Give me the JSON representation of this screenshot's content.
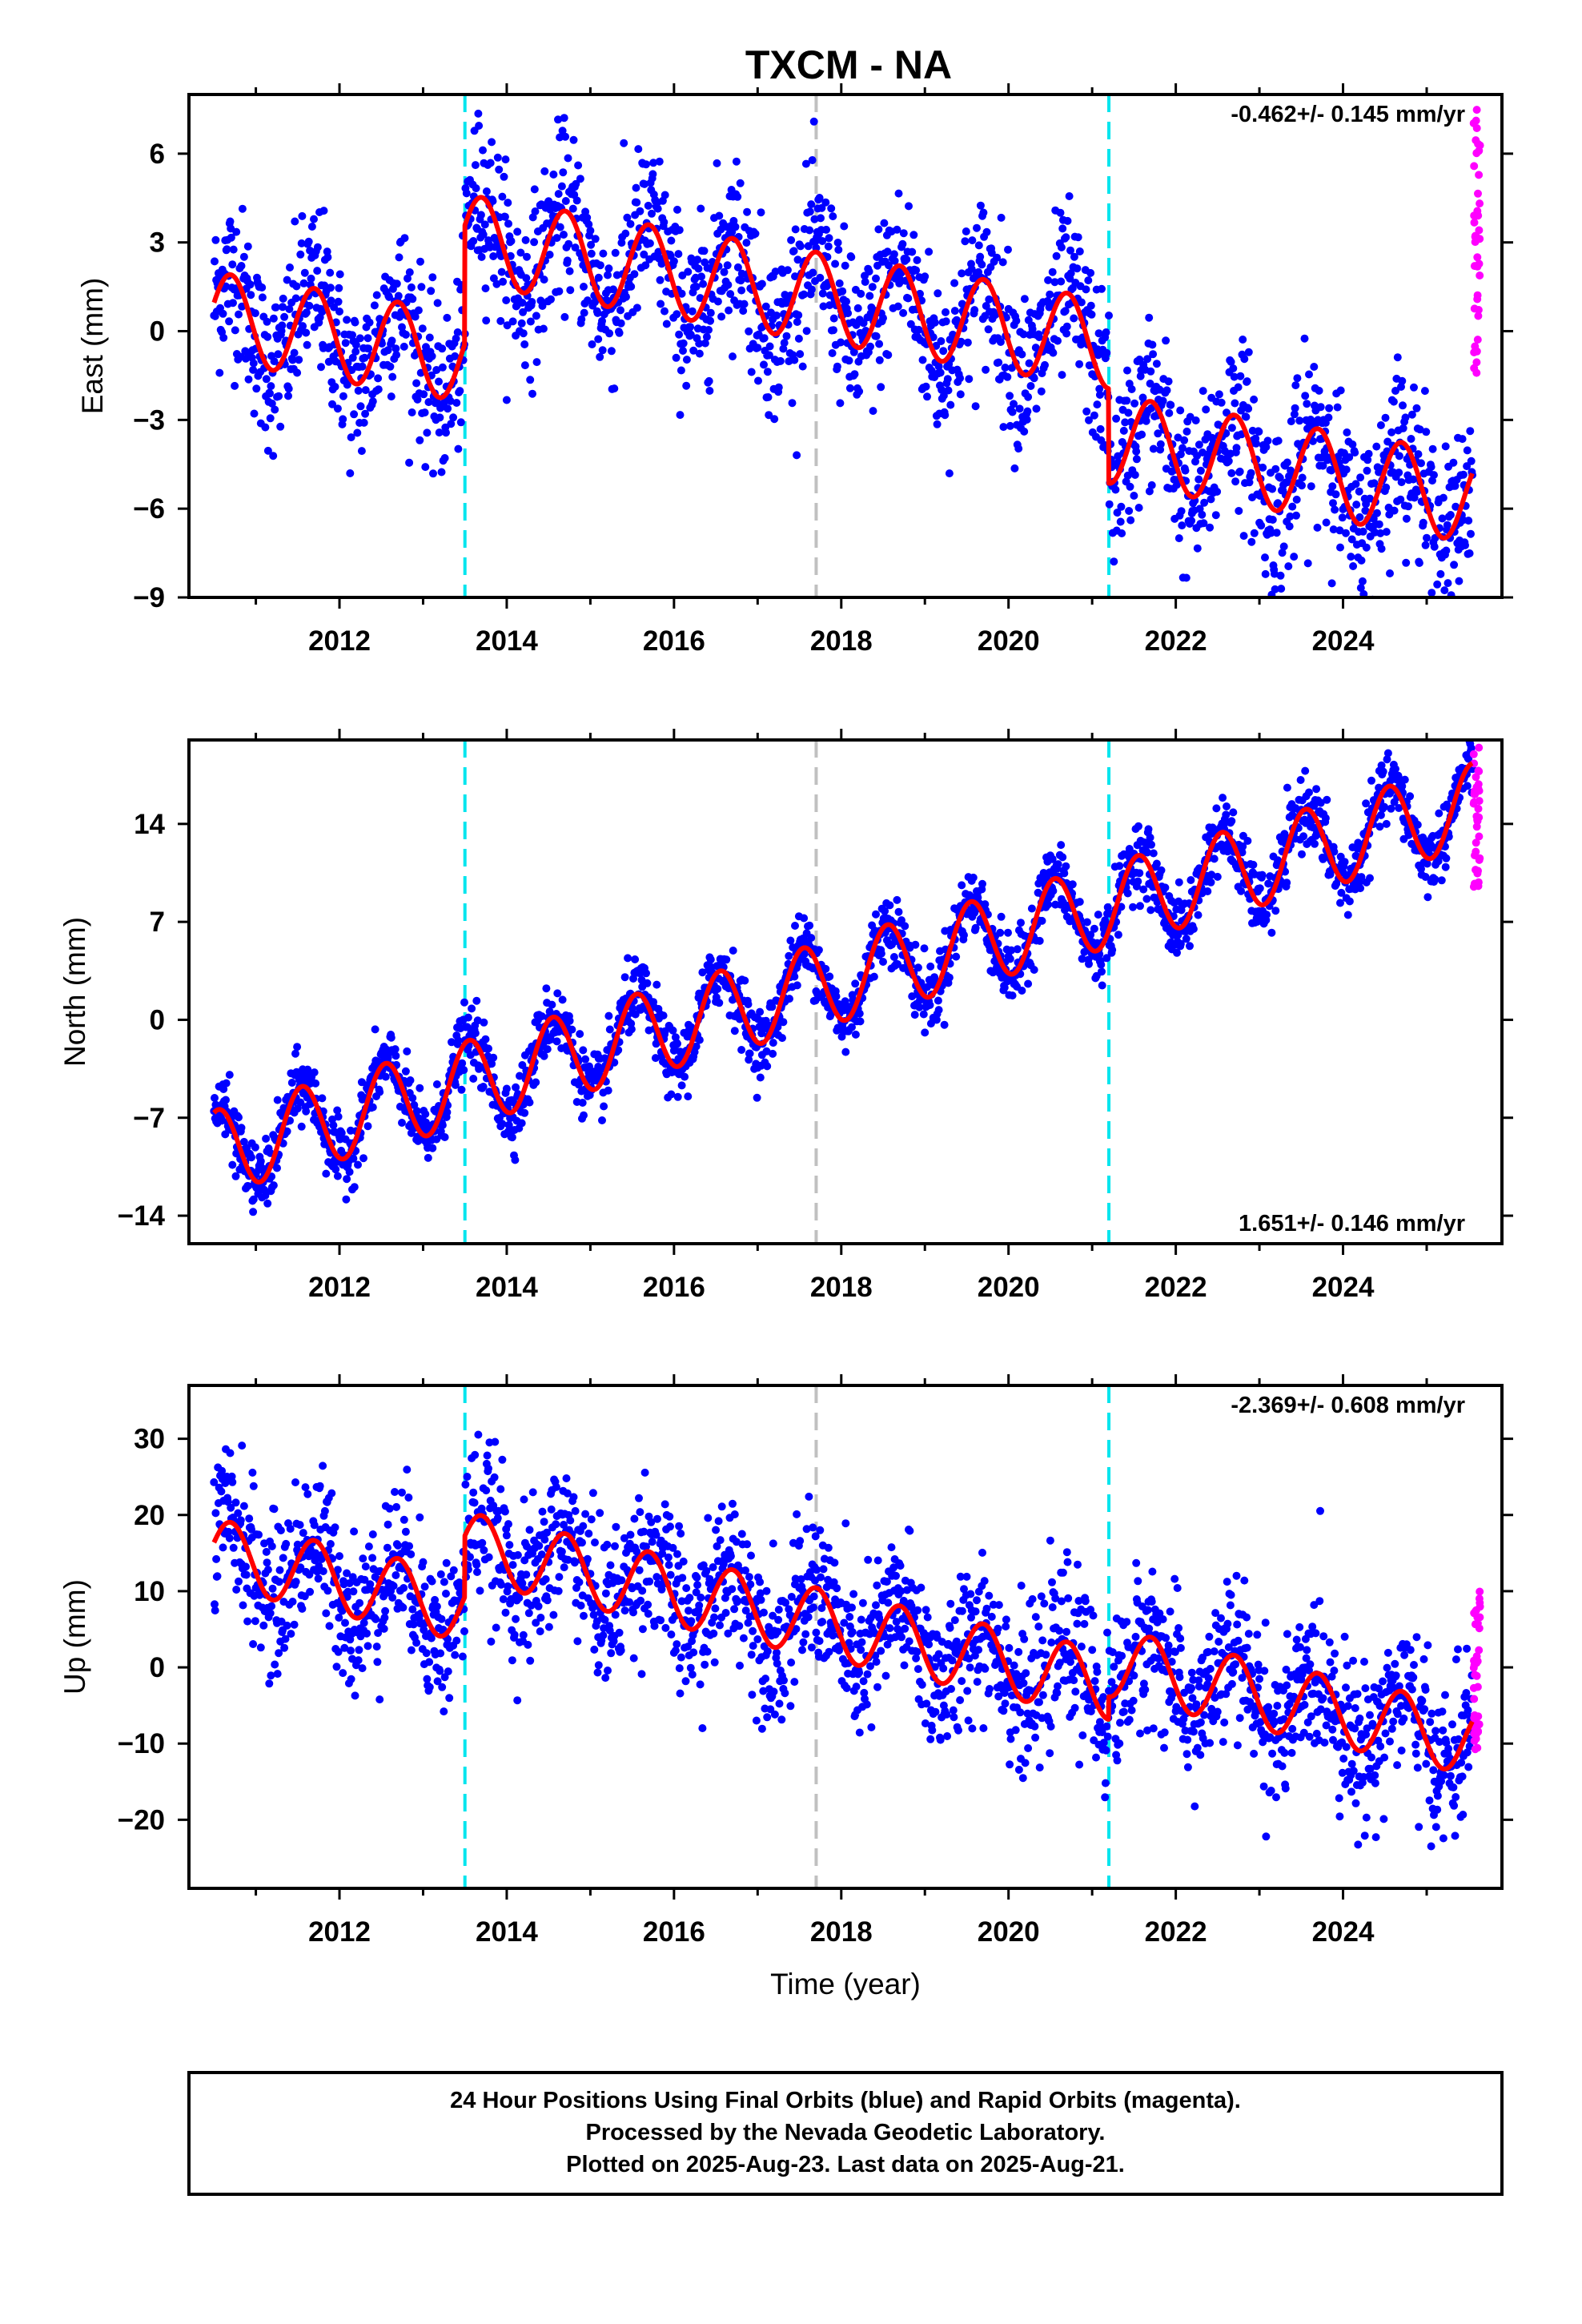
{
  "page": {
    "title": "TXCM - NA",
    "footer": {
      "line1": "24 Hour Positions Using Final Orbits (blue) and Rapid Orbits (magenta).",
      "line2": "Processed by the Nevada Geodetic Laboratory.",
      "line3": "Plotted on 2025-Aug-23. Last data on 2025-Aug-21."
    }
  },
  "colors": {
    "final_orbits": "#0000ff",
    "rapid_orbits": "#ff00ff",
    "model": "#ff0000",
    "equipment_change": "#00e5ee",
    "earthquake": "#c0c0c0"
  },
  "chart_data": [
    {
      "type": "scatter",
      "panel": "east",
      "ylabel": "East (mm)",
      "xlabel": "",
      "rate_label": "-0.462+/- 0.145 mm/yr",
      "rate_position": "top-right",
      "xlim": [
        2010.2,
        2025.9
      ],
      "ylim": [
        -9,
        8
      ],
      "xticks": [
        2012,
        2014,
        2016,
        2018,
        2020,
        2022,
        2024
      ],
      "xtick_labels": [
        "2012",
        "2014",
        "2016",
        "2018",
        "2020",
        "2022",
        "2024"
      ],
      "yticks": [
        -9,
        -6,
        -3,
        0,
        3,
        6
      ],
      "ytick_labels": [
        "−9",
        "−6",
        "−3",
        "0",
        "3",
        "6"
      ],
      "vlines_equipment": [
        2013.5,
        2021.2
      ],
      "vlines_earthquake": [
        2017.7
      ],
      "model": {
        "start": 2010.5,
        "end": 2025.55,
        "offset": 0.5,
        "rate": -0.462,
        "amplitude": 1.5,
        "phase": 2010.45,
        "steps": [
          {
            "t": 2013.5,
            "dy": 4.0
          },
          {
            "t": 2021.2,
            "dy": -3.2
          }
        ]
      },
      "scatter_sigma": 1.4,
      "rapid": {
        "t": 2025.6,
        "range": [
          -1.5,
          7.5
        ]
      }
    },
    {
      "type": "scatter",
      "panel": "north",
      "ylabel": "North (mm)",
      "xlabel": "",
      "rate_label": "1.651+/- 0.146 mm/yr",
      "rate_position": "bottom-right",
      "xlim": [
        2010.2,
        2025.9
      ],
      "ylim": [
        -16,
        20
      ],
      "xticks": [
        2012,
        2014,
        2016,
        2018,
        2020,
        2022,
        2024
      ],
      "xtick_labels": [
        "2012",
        "2014",
        "2016",
        "2018",
        "2020",
        "2022",
        "2024"
      ],
      "yticks": [
        -14,
        -7,
        0,
        7,
        14
      ],
      "ytick_labels": [
        "−14",
        "−7",
        "0",
        "7",
        "14"
      ],
      "vlines_equipment": [
        2013.5,
        2021.2
      ],
      "vlines_earthquake": [
        2017.7
      ],
      "model": {
        "start": 2010.5,
        "end": 2025.55,
        "offset": -9.5,
        "rate": 1.651,
        "amplitude": 3.0,
        "phase": 2010.3,
        "steps": []
      },
      "scatter_sigma": 1.2,
      "rapid": {
        "t": 2025.6,
        "range": [
          9.5,
          19.5
        ]
      }
    },
    {
      "type": "scatter",
      "panel": "up",
      "ylabel": "Up (mm)",
      "xlabel": "Time (year)",
      "rate_label": "-2.369+/- 0.608 mm/yr",
      "rate_position": "top-right",
      "xlim": [
        2010.2,
        2025.9
      ],
      "ylim": [
        -29,
        37
      ],
      "xticks": [
        2012,
        2014,
        2016,
        2018,
        2020,
        2022,
        2024
      ],
      "xtick_labels": [
        "2012",
        "2014",
        "2016",
        "2018",
        "2020",
        "2022",
        "2024"
      ],
      "yticks": [
        -20,
        -10,
        0,
        10,
        20,
        30
      ],
      "ytick_labels": [
        "−20",
        "−10",
        "0",
        "10",
        "20",
        "30"
      ],
      "vlines_equipment": [
        2013.5,
        2021.2
      ],
      "vlines_earthquake": [
        2017.7
      ],
      "model": {
        "start": 2010.5,
        "end": 2025.55,
        "offset": 15.0,
        "rate": -2.369,
        "amplitude": 4.5,
        "phase": 2010.45,
        "steps": [
          {
            "t": 2013.5,
            "dy": 8.0
          },
          {
            "t": 2021.2,
            "dy": 3.0
          }
        ]
      },
      "scatter_sigma": 5.0,
      "rapid": {
        "t": 2025.6,
        "range": [
          -11,
          10
        ]
      }
    }
  ]
}
